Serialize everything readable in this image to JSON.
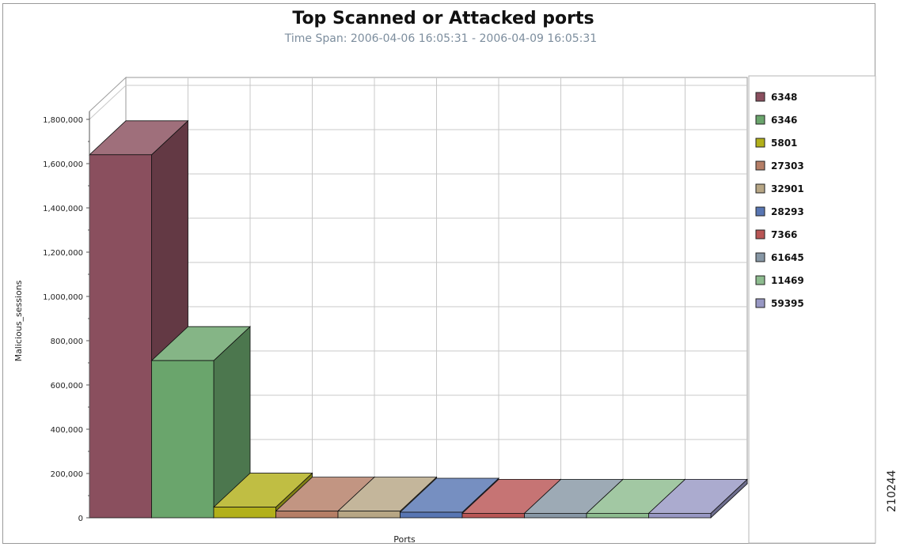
{
  "chart_data": {
    "type": "bar",
    "style": "3d",
    "title": "Top Scanned or Attacked ports",
    "subtitle": "Time Span: 2006-04-06 16:05:31 - 2006-04-09 16:05:31",
    "xlabel": "Ports",
    "ylabel": "Malicious_sessions",
    "ylim": [
      0,
      1800000
    ],
    "yticks": [
      "0",
      "200,000",
      "400,000",
      "600,000",
      "800,000",
      "1,000,000",
      "1,200,000",
      "1,400,000",
      "1,600,000",
      "1,800,000"
    ],
    "grid": true,
    "legend_position": "right",
    "series": [
      {
        "name": "6348",
        "value": 1640000,
        "color": "#8a4f5e"
      },
      {
        "name": "6346",
        "value": 710000,
        "color": "#6aa56c"
      },
      {
        "name": "5801",
        "value": 48000,
        "color": "#b2b01a"
      },
      {
        "name": "27303",
        "value": 30000,
        "color": "#b57e66"
      },
      {
        "name": "32901",
        "value": 30000,
        "color": "#b7a685"
      },
      {
        "name": "28293",
        "value": 25000,
        "color": "#5876b3"
      },
      {
        "name": "7366",
        "value": 20000,
        "color": "#b95655"
      },
      {
        "name": "61645",
        "value": 20000,
        "color": "#8797a5"
      },
      {
        "name": "11469",
        "value": 20000,
        "color": "#8dbc8f"
      },
      {
        "name": "59395",
        "value": 20000,
        "color": "#9898c4"
      }
    ]
  },
  "figure_id": "210244"
}
